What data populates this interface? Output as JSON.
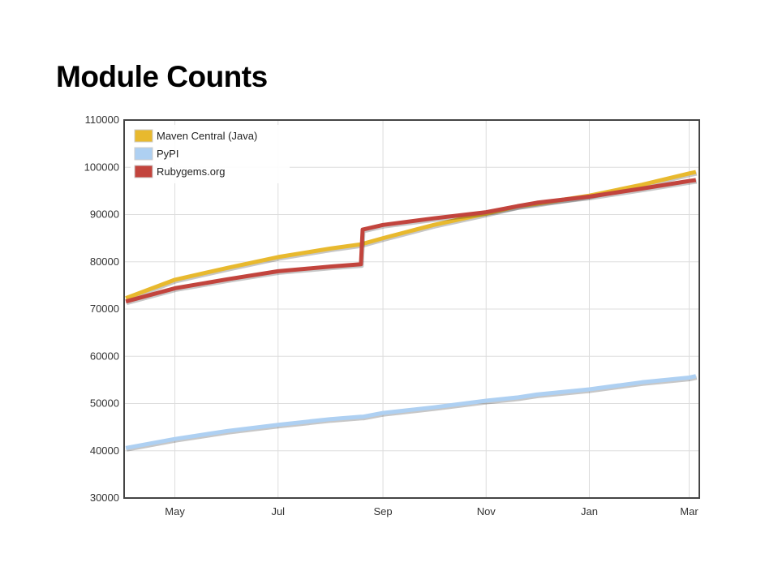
{
  "page": {
    "title": "Module Counts"
  },
  "chart_data": {
    "type": "line",
    "title": "Module Counts",
    "xlabel": "",
    "ylabel": "",
    "ylim": [
      30000,
      110000
    ],
    "y_ticks": [
      30000,
      40000,
      50000,
      60000,
      70000,
      80000,
      90000,
      100000,
      110000
    ],
    "x_ticks": [
      "May",
      "Jul",
      "Sep",
      "Nov",
      "Jan",
      "Mar"
    ],
    "x": [
      "Apr 2",
      "May 1",
      "Jun 1",
      "Jul 1",
      "Aug 1",
      "Aug 19",
      "Aug 20",
      "Sep 1",
      "Oct 1",
      "Nov 1",
      "Nov 20",
      "Dec 1",
      "Jan 1",
      "Feb 1",
      "Mar 1",
      "Mar 5"
    ],
    "grid": true,
    "legend_position": "top-left",
    "series": [
      {
        "name": "Maven Central (Java)",
        "color": "#e8b92e",
        "values": [
          72300,
          76200,
          78700,
          81000,
          82800,
          83700,
          83800,
          85000,
          87800,
          90200,
          91800,
          92300,
          94000,
          96300,
          98700,
          99000
        ]
      },
      {
        "name": "PyPI",
        "color": "#aed0f2",
        "values": [
          40600,
          42500,
          44200,
          45500,
          46700,
          47200,
          47200,
          48000,
          49200,
          50600,
          51300,
          51900,
          53000,
          54500,
          55500,
          55800
        ]
      },
      {
        "name": "Rubygems.org",
        "color": "#c2443d",
        "values": [
          71600,
          74400,
          76300,
          78000,
          79000,
          79500,
          86800,
          87800,
          89200,
          90500,
          91800,
          92500,
          93800,
          95500,
          97100,
          97300
        ]
      }
    ]
  }
}
